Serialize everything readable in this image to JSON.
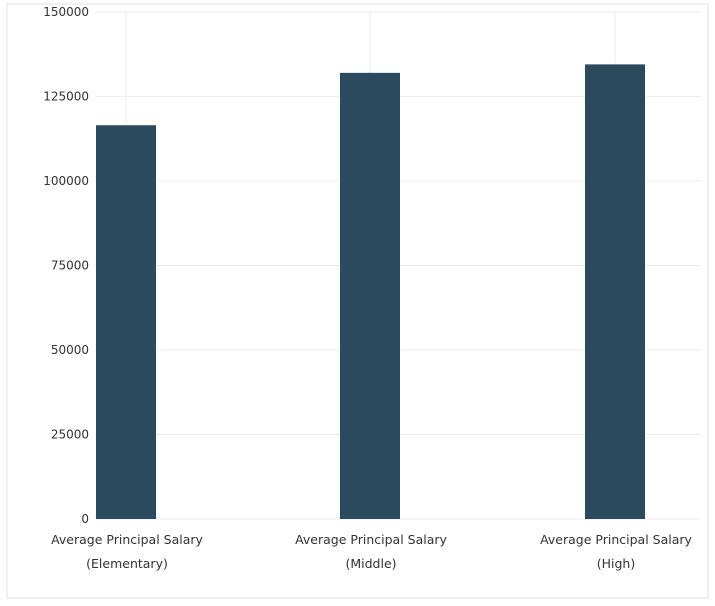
{
  "chart_data": {
    "type": "bar",
    "title": "",
    "xlabel": "",
    "ylabel": "",
    "categories": [
      [
        "Average Principal Salary",
        "(Elementary)"
      ],
      [
        "Average Principal Salary",
        "(Middle)"
      ],
      [
        "Average Principal Salary",
        "(High)"
      ]
    ],
    "values": [
      116500,
      132000,
      134500
    ],
    "ylim": [
      0,
      150000
    ],
    "yticks": [
      "0",
      "25000",
      "50000",
      "75000",
      "100000",
      "125000",
      "150000"
    ],
    "grid": true,
    "legend": "none",
    "bar_color": "#2b4a5e",
    "grid_color": "#ececec"
  }
}
